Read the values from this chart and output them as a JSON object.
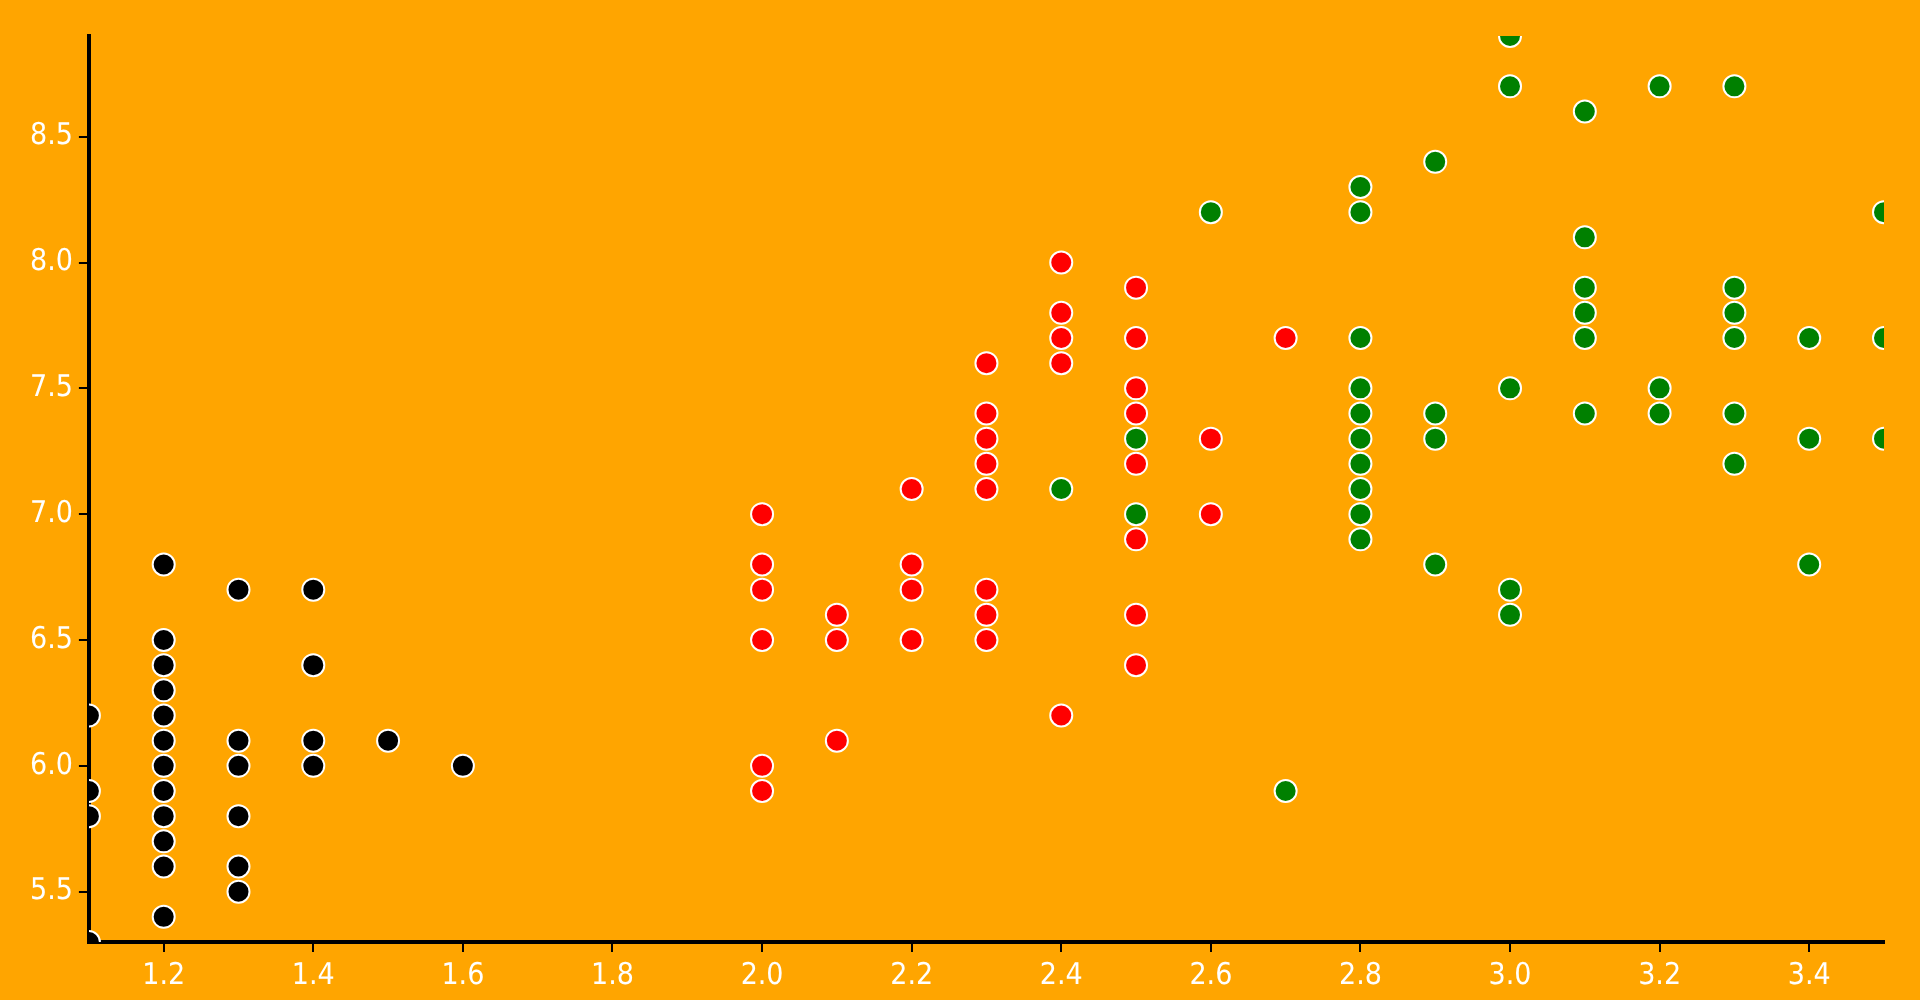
{
  "chart_data": {
    "type": "scatter",
    "xlim": [
      1.1,
      3.5
    ],
    "ylim": [
      5.3,
      8.9
    ],
    "xticks": [
      1.2,
      1.4,
      1.6,
      1.8,
      {
        "value": 2.0,
        "label": "2.0"
      },
      2.2,
      2.4,
      2.6,
      2.8,
      {
        "value": 3.0,
        "label": "3.0"
      },
      3.2,
      3.4
    ],
    "yticks": [
      5.5,
      {
        "value": 6.0,
        "label": "6.0"
      },
      6.5,
      {
        "value": 7.0,
        "label": "7.0"
      },
      7.5,
      {
        "value": 8.0,
        "label": "8.0"
      },
      8.5
    ],
    "grid": false,
    "legend": false,
    "marker": "circle",
    "series": [
      {
        "color": "#000000",
        "x": [
          1.1,
          1.1,
          1.1,
          1.1,
          1.2,
          1.2,
          1.2,
          1.2,
          1.2,
          1.2,
          1.2,
          1.2,
          1.2,
          1.2,
          1.2,
          1.2,
          1.3,
          1.3,
          1.3,
          1.3,
          1.3,
          1.3,
          1.4,
          1.4,
          1.4,
          1.4,
          1.5,
          1.6
        ],
        "values": [
          6.2,
          5.9,
          5.8,
          5.3,
          6.8,
          6.5,
          6.4,
          6.3,
          6.2,
          6.1,
          6.0,
          5.9,
          5.8,
          5.7,
          5.6,
          5.4,
          6.7,
          6.1,
          6.0,
          5.8,
          5.6,
          5.5,
          6.7,
          6.4,
          6.1,
          6.0,
          6.1,
          6.0
        ]
      },
      {
        "color": "#ff0000",
        "x": [
          2.0,
          2.0,
          2.0,
          2.0,
          2.0,
          2.0,
          2.1,
          2.1,
          2.1,
          2.2,
          2.2,
          2.2,
          2.2,
          2.3,
          2.3,
          2.3,
          2.3,
          2.3,
          2.3,
          2.3,
          2.3,
          2.4,
          2.4,
          2.4,
          2.4,
          2.4,
          2.5,
          2.5,
          2.5,
          2.5,
          2.5,
          2.5,
          2.5,
          2.5,
          2.6,
          2.6,
          2.7
        ],
        "values": [
          7.0,
          6.8,
          6.7,
          6.5,
          6.0,
          5.9,
          6.6,
          6.5,
          6.1,
          7.1,
          6.8,
          6.7,
          6.5,
          7.6,
          7.4,
          7.3,
          7.2,
          7.1,
          6.7,
          6.6,
          6.5,
          8.0,
          7.8,
          7.7,
          7.6,
          6.2,
          7.9,
          7.7,
          7.5,
          7.4,
          7.2,
          6.9,
          6.6,
          6.4,
          7.3,
          7.0,
          7.7
        ]
      },
      {
        "color": "#008000",
        "x": [
          2.4,
          2.5,
          2.5,
          2.6,
          2.7,
          2.8,
          2.8,
          2.8,
          2.8,
          2.8,
          2.8,
          2.8,
          2.8,
          2.8,
          2.8,
          2.9,
          2.9,
          2.9,
          2.9,
          3.0,
          3.0,
          3.0,
          3.0,
          3.0,
          3.1,
          3.1,
          3.1,
          3.1,
          3.1,
          3.1,
          3.2,
          3.2,
          3.2,
          3.3,
          3.3,
          3.3,
          3.3,
          3.3,
          3.3,
          3.4,
          3.4,
          3.4,
          3.5,
          3.5,
          3.5
        ],
        "values": [
          7.1,
          7.3,
          7.0,
          8.2,
          5.9,
          8.3,
          8.2,
          7.7,
          7.5,
          7.4,
          7.3,
          7.2,
          7.1,
          7.0,
          6.9,
          8.4,
          7.4,
          7.3,
          6.8,
          8.9,
          8.7,
          7.5,
          6.7,
          6.6,
          8.6,
          8.1,
          7.9,
          7.8,
          7.7,
          7.4,
          8.7,
          7.5,
          7.4,
          8.7,
          7.9,
          7.8,
          7.7,
          7.4,
          7.2,
          7.7,
          7.3,
          6.8,
          8.2,
          7.7,
          7.3
        ]
      }
    ]
  }
}
